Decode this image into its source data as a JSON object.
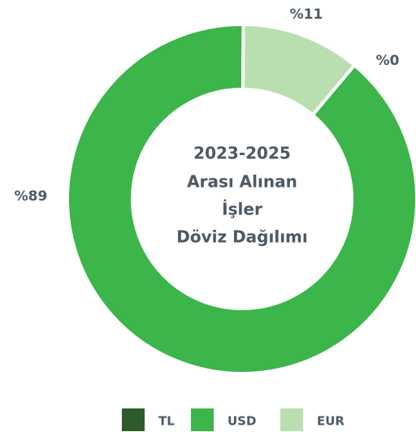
{
  "chart_data": {
    "type": "donut",
    "title_lines": [
      "2023-2025",
      "Arası Alınan",
      "İşler",
      "Döviz Dağılımı"
    ],
    "categories": [
      "TL",
      "USD",
      "EUR"
    ],
    "values": [
      0,
      89,
      11
    ],
    "value_labels": [
      "%0",
      "%89",
      "%11"
    ],
    "colors": [
      "#2f5a2c",
      "#3cb54a",
      "#b9dfb1"
    ]
  }
}
